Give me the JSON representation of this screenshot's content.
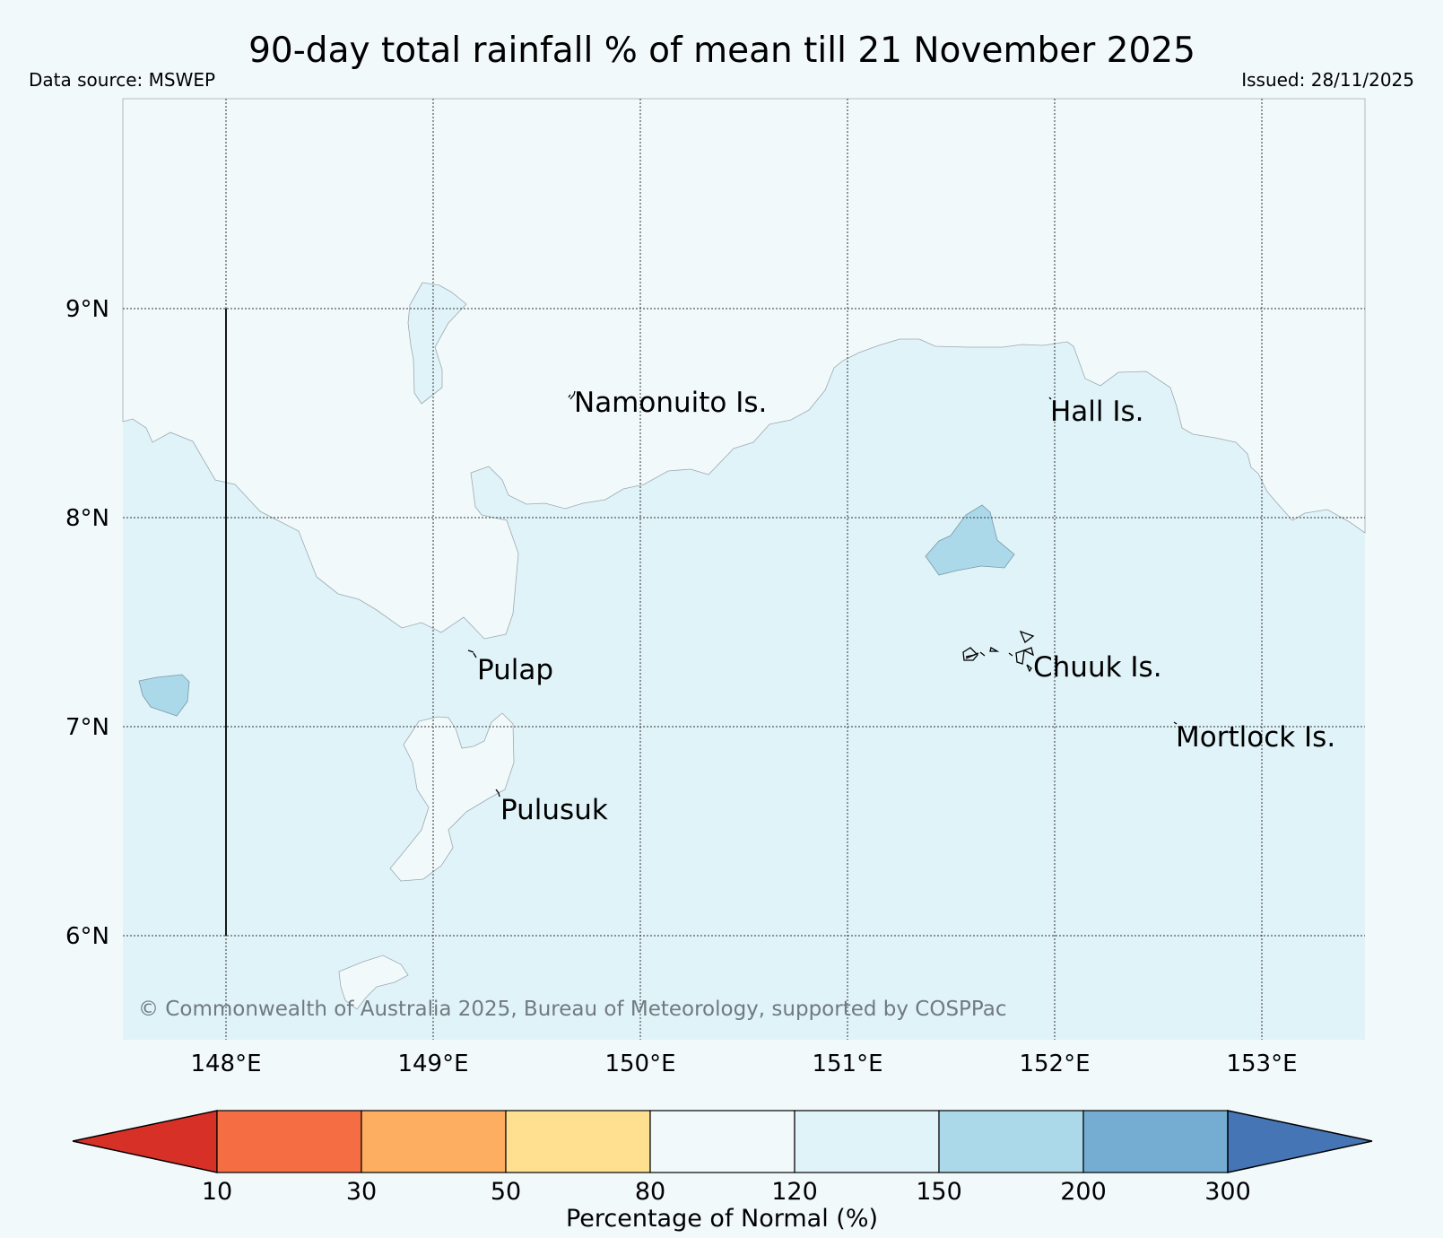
{
  "title": "90-day total rainfall % of mean till 21 November 2025",
  "data_source": "Data source: MSWEP",
  "issued": "Issued: 28/11/2025",
  "copyright": "© Commonwealth of Australia 2025, Bureau of Meteorology, supported by COSPPac",
  "axes": {
    "x_ticks": [
      "148°E",
      "149°E",
      "150°E",
      "151°E",
      "152°E",
      "153°E"
    ],
    "y_ticks": [
      "9°N",
      "8°N",
      "7°N",
      "6°N"
    ]
  },
  "places": [
    {
      "name": "Namonuito Is.",
      "lon": 149.7,
      "lat": 8.53
    },
    {
      "name": "Hall Is.",
      "lon": 151.97,
      "lat": 8.5
    },
    {
      "name": "Pulap",
      "lon": 149.2,
      "lat": 7.3
    },
    {
      "name": "Chuuk Is.",
      "lon": 151.85,
      "lat": 7.3
    },
    {
      "name": "Mortlock Is.",
      "lon": 152.6,
      "lat": 6.98
    },
    {
      "name": "Pulusuk",
      "lon": 149.31,
      "lat": 6.66
    }
  ],
  "colorbar": {
    "label": "Percentage of Normal (%)",
    "ticks": [
      "10",
      "30",
      "50",
      "80",
      "120",
      "150",
      "200",
      "300"
    ],
    "under_color": "#d73027",
    "over_color": "#4575b4",
    "colors": [
      "#f46d43",
      "#fdae61",
      "#fee090",
      "#f2f9fb",
      "#e0f3f8",
      "#abd9e9",
      "#74add1"
    ]
  },
  "map_colors": {
    "range_80_120": "#f2f9fb",
    "range_120_150": "#e0f3f8",
    "range_150_200": "#abd9e9"
  }
}
